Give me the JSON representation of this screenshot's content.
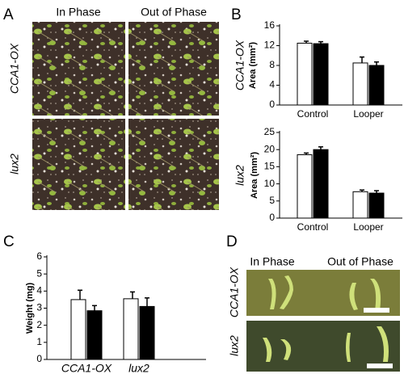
{
  "panel_labels": [
    "A",
    "B",
    "C",
    "D"
  ],
  "panel_a": {
    "columns": [
      "In Phase",
      "Out of Phase"
    ],
    "rows": [
      "CCA1-OX",
      "lux2"
    ]
  },
  "panel_d": {
    "columns": [
      "In Phase",
      "Out of Phase"
    ],
    "rows": [
      "CCA1-OX",
      "lux2"
    ]
  },
  "chart_data": [
    {
      "type": "bar",
      "row_label": "CCA1-OX",
      "ylabel": "Area (mm²)",
      "categories": [
        "Control",
        "Looper"
      ],
      "series": [
        {
          "color": "#ffffff",
          "values": [
            12.5,
            8.5
          ],
          "errors": [
            0.4,
            1.2
          ]
        },
        {
          "color": "#000000",
          "values": [
            12.4,
            8.0
          ],
          "errors": [
            0.4,
            0.7
          ]
        }
      ],
      "ylim": [
        0,
        16
      ],
      "yticks": [
        0,
        4,
        8,
        12,
        16
      ]
    },
    {
      "type": "bar",
      "row_label": "lux2",
      "ylabel": "Area (mm²)",
      "categories": [
        "Control",
        "Looper"
      ],
      "series": [
        {
          "color": "#ffffff",
          "values": [
            18.5,
            7.7
          ],
          "errors": [
            0.5,
            0.5
          ]
        },
        {
          "color": "#000000",
          "values": [
            20.0,
            7.3
          ],
          "errors": [
            0.8,
            0.7
          ]
        }
      ],
      "ylim": [
        0,
        25
      ],
      "yticks": [
        0,
        5,
        10,
        15,
        20,
        25
      ]
    },
    {
      "type": "bar",
      "ylabel": "Weight (mg)",
      "categories": [
        "CCA1-OX",
        "lux2"
      ],
      "series": [
        {
          "color": "#ffffff",
          "values": [
            3.5,
            3.55
          ],
          "errors": [
            0.55,
            0.4
          ]
        },
        {
          "color": "#000000",
          "values": [
            2.85,
            3.1
          ],
          "errors": [
            0.3,
            0.5
          ]
        }
      ],
      "ylim": [
        0,
        6
      ],
      "yticks": [
        0,
        1,
        2,
        3,
        4,
        5,
        6
      ]
    }
  ]
}
